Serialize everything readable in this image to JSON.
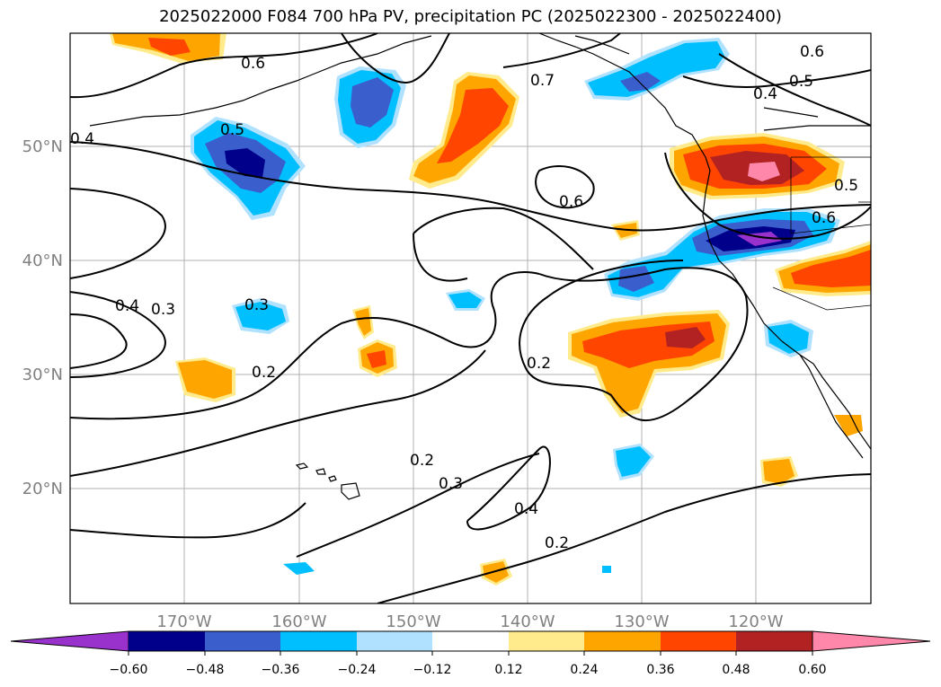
{
  "title": "2025022000 F084 700 hPa PV, precipitation PC (2025022300 - 2025022400)",
  "axes": {
    "lon_labels": [
      "170°W",
      "160°W",
      "150°W",
      "140°W",
      "130°W",
      "120°W"
    ],
    "lat_labels": [
      "50°N",
      "40°N",
      "30°N",
      "20°N"
    ]
  },
  "colorbar": {
    "colors": [
      "#9932cc",
      "#00008b",
      "#3a5fcd",
      "#00bfff",
      "#b0e2ff",
      "#ffffff",
      "#ffeb8c",
      "#ffa500",
      "#ff4500",
      "#b22222",
      "#ff88aa"
    ],
    "tick_labels": [
      "−0.60",
      "−0.48",
      "−0.36",
      "−0.24",
      "−0.12",
      "0.12",
      "0.24",
      "0.36",
      "0.48",
      "0.60"
    ]
  },
  "contour_labels": [
    "0.6",
    "0.7",
    "0.6",
    "0.5",
    "0.4",
    "0.4",
    "0.5",
    "0.6",
    "0.5",
    "0.6",
    "0.4",
    "0.3",
    "0.3",
    "0.2",
    "0.2",
    "0.2",
    "0.3",
    "0.4",
    "0.2"
  ]
}
